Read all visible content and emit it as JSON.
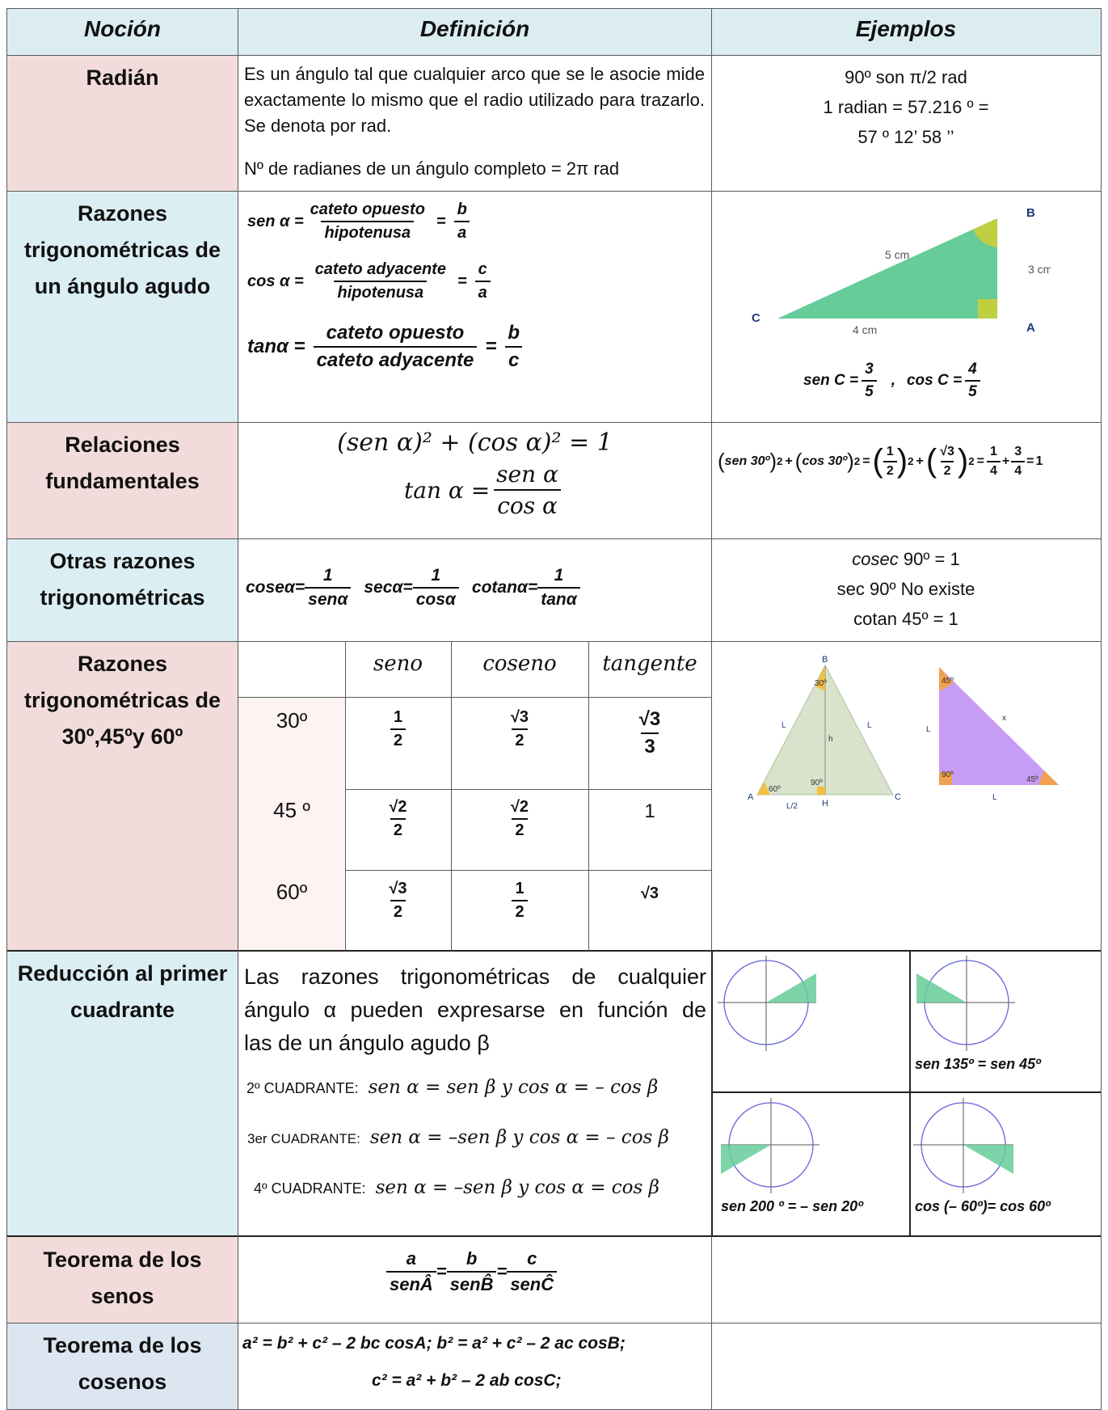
{
  "headers": {
    "notion": "Noción",
    "definition": "Definición",
    "examples": "Ejemplos"
  },
  "radian": {
    "notion": "Radián",
    "def_p1": "Es un ángulo tal que cualquier arco que se le asocie mide exactamente lo mismo que el radio utilizado para trazarlo. Se denota por rad.",
    "def_p2": "Nº de radianes de un ángulo completo = 2π rad",
    "ex1": "90º son π/2 rad",
    "ex2": "1 radian = 57.216 º =",
    "ex3": "57 º 12’ 58 ’’"
  },
  "acute": {
    "notion_l1": "Razones",
    "notion_l2": "trigonométricas de",
    "notion_l3": "un ángulo agudo",
    "sen_label": "sen α =",
    "sen_num": "cateto  opuesto",
    "sen_den": "hipotenusa",
    "sen_eq": "=",
    "sen_b": "b",
    "sen_a": "a",
    "cos_label": "cos α =",
    "cos_num": "cateto  adyacente",
    "cos_den": "hipotenusa",
    "cos_eq": "=",
    "cos_c": "c",
    "cos_a": "a",
    "tan_label": "tanα =",
    "tan_num": "cateto opuesto",
    "tan_den": "cateto adyacente",
    "tan_eq": "=",
    "tan_b": "b",
    "tan_c": "c",
    "tri_b": "B",
    "tri_a": "A",
    "tri_c": "C",
    "tri_hyp": "5 cm",
    "tri_side": "3 cm",
    "tri_base": "4 cm",
    "senC_label": "sen C =",
    "senC_num": "3",
    "senC_den": "5",
    "comma": ",",
    "cosC_label": "cos C =",
    "cosC_num": "4",
    "cosC_den": "5"
  },
  "fund": {
    "notion_l1": "Relaciones",
    "notion_l2": "fundamentales",
    "f1": "(sen  α)² + (cos  α)² = 1",
    "f2_label": "tan  α =",
    "f2_num": "sen  α",
    "f2_den": "cos  α",
    "ex": "(sen 30º)² + (cos 30º)² = (1/2)² + (√3/2)² = 1/4 + 3/4 = 1",
    "ex_a": "sen 30º",
    "ex_b": "cos 30º",
    "ex_1": "1",
    "ex_2": "2",
    "ex_r3": "√3",
    "ex_4": "4",
    "ex_3": "3",
    "ex_one": "1"
  },
  "other": {
    "notion_l1": "Otras razones",
    "notion_l2": "trigonométricas",
    "cosec_l": "coseα=",
    "sec_l": "secα=",
    "cot_l": "cotanα=",
    "one": "1",
    "d1": "senα",
    "d2": "cosα",
    "d3": "tanα",
    "ex1_it": "cosec",
    "ex1": " 90º = 1",
    "ex2": "sec 90º No existe",
    "ex3": "cotan 45º = 1"
  },
  "special": {
    "notion_l1": "Razones",
    "notion_l2": "trigonométricas de",
    "notion_l3": "30º,45ºy 60º",
    "col_seno": "seno",
    "col_coseno": "coseno",
    "col_tangente": "tangente",
    "rows": [
      {
        "angle": "30º",
        "sen_n": "1",
        "sen_d": "2",
        "cos_n": "√3",
        "cos_d": "2",
        "tan_n": "√3",
        "tan_d": "3"
      },
      {
        "angle": "45 º",
        "sen_n": "√2",
        "sen_d": "2",
        "cos_n": "√2",
        "cos_d": "2",
        "tan": "1"
      },
      {
        "angle": "60º",
        "sen_n": "√3",
        "sen_d": "2",
        "cos_n": "1",
        "cos_d": "2",
        "tan": "√3"
      }
    ],
    "t1": {
      "b": "B",
      "a": "A",
      "c": "C",
      "h": "H",
      "l1": "L",
      "l2": "L",
      "hh": "h",
      "half": "L/2",
      "a30": "30º",
      "a60": "60º",
      "a90": "90º"
    },
    "t2": {
      "a45": "45º",
      "a90": "90º",
      "a45b": "45º",
      "x": "x",
      "l1": "L",
      "l2": "L"
    }
  },
  "reduction": {
    "notion_l1": "Reducción al primer",
    "notion_l2": "cuadrante",
    "def_l1": "Las razones trigonométricas de cualquier",
    "def_l2": "ángulo α pueden expresarse en función de",
    "def_l3": "las de un ángulo agudo β",
    "q2_label": "2º CUADRANTE:",
    "q2_eq": "sen  α = sen  β  y  cos  α = – cos  β",
    "q3_label": "3er CUADRANTE:",
    "q3_eq": "sen  α = –sen  β  y  cos  α = – cos  β",
    "q4_label": "4º CUADRANTE:",
    "q4_eq": "sen  α = –sen  β  y  cos  α = cos  β",
    "ex2": "sen 135º = sen 45º",
    "ex3": "sen 200 º = – sen 20º",
    "ex4": "cos (– 60º)= cos 60º"
  },
  "sines": {
    "notion_l1": "Teorema de los",
    "notion_l2": "senos",
    "a": "a",
    "b": "b",
    "c": "c",
    "eq": "=",
    "da": "senÂ",
    "db": "senB̂",
    "dc": "senĈ"
  },
  "cosines": {
    "notion_l1": "Teorema de los",
    "notion_l2": "cosenos",
    "l1": "a² = b² + c² – 2 bc cosA; b² = a² + c² – 2 ac cosB;",
    "l2": "c² = a² + b² – 2 ab cosC;"
  },
  "colors": {
    "header_bg": "#dcedf2",
    "pink": "#f2dcdb",
    "blue": "#dbeef4",
    "lavender": "#dce6f1",
    "green": "#66cc99",
    "olive": "#bfcf40"
  }
}
